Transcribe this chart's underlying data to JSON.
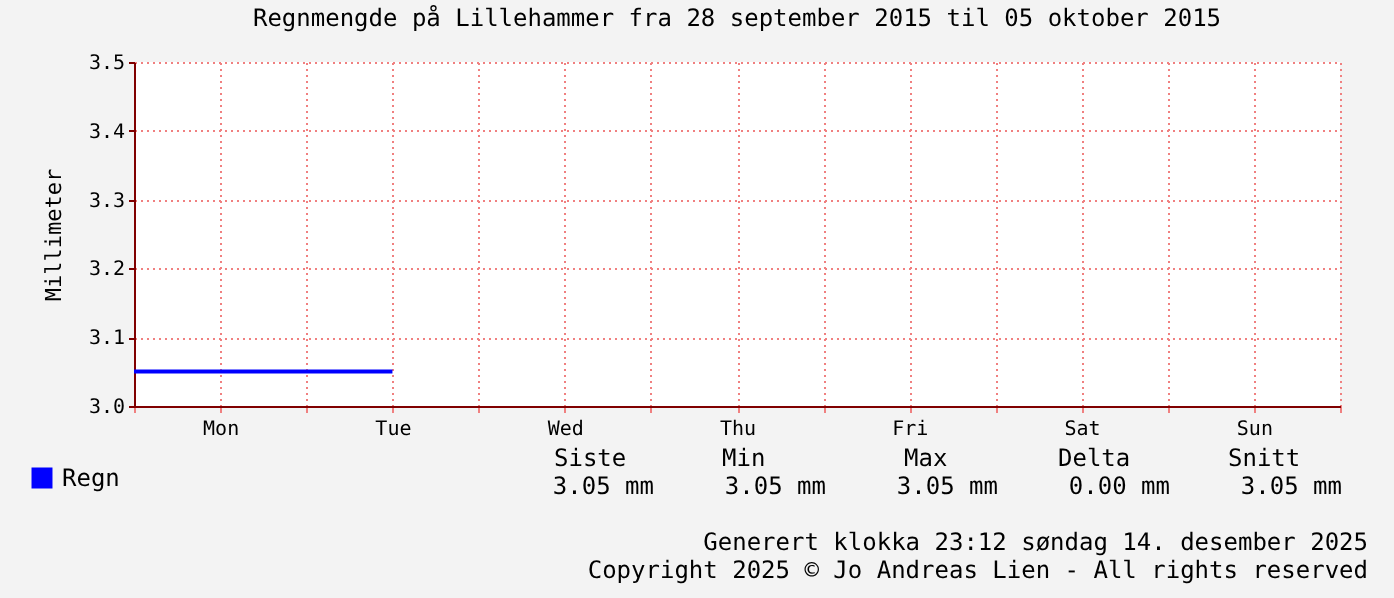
{
  "chart_data": {
    "type": "line",
    "title": "Regnmengde på Lillehammer fra 28 september 2015 til 05 oktober 2015",
    "ylabel": "Millimeter",
    "series": [
      {
        "name": "Regn",
        "color": "#0000ff",
        "values": [
          3.05,
          3.05,
          3.05,
          3.05,
          null,
          null,
          null,
          null,
          null,
          null,
          null,
          null,
          null,
          null,
          null
        ]
      }
    ],
    "categories": [
      null,
      "Mon",
      null,
      "Tue",
      null,
      "Wed",
      null,
      "Thu",
      null,
      "Fri",
      null,
      "Sat",
      null,
      "Sun",
      null
    ],
    "ylim": [
      3.0,
      3.5
    ],
    "yticks": [
      {
        "value": 3.0,
        "label": "3.0"
      },
      {
        "value": 3.1,
        "label": "3.1"
      },
      {
        "value": 3.2,
        "label": "3.2"
      },
      {
        "value": 3.3,
        "label": "3.3"
      },
      {
        "value": 3.4,
        "label": "3.4"
      },
      {
        "value": 3.5,
        "label": "3.5"
      }
    ],
    "grid": true,
    "legend": "bottom left",
    "marker": "none",
    "line_style": "solid",
    "annotations": [
      "Siste",
      "Min",
      "Max",
      "Delta",
      "Snitt",
      "3.05 mm",
      "3.05 mm",
      "3.05 mm",
      "0.00 mm",
      "3.05 mm",
      "Generert klokka 23:12 søndag 14. desember 2025",
      "Copyright 2025 © Jo Andreas Lien - All rights reserved"
    ]
  }
}
